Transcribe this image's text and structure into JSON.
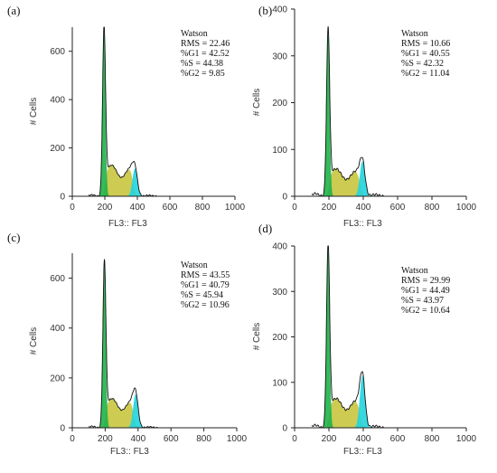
{
  "chart_data": [
    {
      "type": "area",
      "panel_label": "(a)",
      "xlabel": "FL3:: FL3",
      "ylabel": "# Cells",
      "xlim": [
        0,
        1000
      ],
      "ylim": [
        0,
        700
      ],
      "xticks": [
        0,
        200,
        400,
        600,
        800,
        1000
      ],
      "yticks": [
        0,
        200,
        400,
        600
      ],
      "model": "Watson",
      "stats": [
        "RMS = 22.46",
        "%G1 = 42.52",
        "%S = 44.38",
        "%G2 = 9.85"
      ],
      "g1_peak": {
        "x": 195,
        "y": 680
      },
      "s_phase_plateau": {
        "x_from": 215,
        "x_to": 360,
        "y": 110
      },
      "g2_peak": {
        "x": 385,
        "y": 115
      },
      "colors": {
        "g1": "#1fb24a",
        "s": "#c4c233",
        "g2": "#22d4de",
        "outline": "#111111"
      }
    },
    {
      "type": "area",
      "panel_label": "(b)",
      "xlabel": "FL3:: FL3",
      "ylabel": "# Cells",
      "xlim": [
        0,
        1000
      ],
      "ylim": [
        0,
        400
      ],
      "xticks": [
        0,
        200,
        400,
        600,
        800,
        1000
      ],
      "yticks": [
        0,
        100,
        200,
        300,
        400
      ],
      "model": "Watson",
      "stats": [
        "RMS = 10.66",
        "%G1 = 40.55",
        "%S = 42.32",
        "%G2 = 11.04"
      ],
      "g1_peak": {
        "x": 195,
        "y": 350
      },
      "s_phase_plateau": {
        "x_from": 215,
        "x_to": 375,
        "y": 50
      },
      "g2_peak": {
        "x": 395,
        "y": 75
      },
      "colors": {
        "g1": "#1fb24a",
        "s": "#c4c233",
        "g2": "#22d4de",
        "outline": "#111111"
      }
    },
    {
      "type": "area",
      "panel_label": "(c)",
      "xlabel": "FL3:: FL3",
      "ylabel": "# Cells",
      "xlim": [
        0,
        1000
      ],
      "ylim": [
        0,
        700
      ],
      "xticks": [
        0,
        200,
        400,
        600,
        800,
        1000
      ],
      "yticks": [
        0,
        200,
        400,
        600
      ],
      "model": "Watson",
      "stats": [
        "RMS = 43.55",
        "%G1 = 40.79",
        "%S = 45.94",
        "%G2 = 10.96"
      ],
      "g1_peak": {
        "x": 195,
        "y": 650
      },
      "s_phase_plateau": {
        "x_from": 215,
        "x_to": 360,
        "y": 100
      },
      "g2_peak": {
        "x": 385,
        "y": 135
      },
      "colors": {
        "g1": "#1fb24a",
        "s": "#c4c233",
        "g2": "#22d4de",
        "outline": "#111111"
      }
    },
    {
      "type": "area",
      "panel_label": "(d)",
      "xlabel": "FL3:: FL3",
      "ylabel": "# Cells",
      "xlim": [
        0,
        1000
      ],
      "ylim": [
        0,
        400
      ],
      "xticks": [
        0,
        200,
        400,
        600,
        800,
        1000
      ],
      "yticks": [
        0,
        100,
        200,
        300,
        400
      ],
      "model": "Watson",
      "stats": [
        "RMS = 29.99",
        "%G1 = 44.49",
        "%S = 43.97",
        "%G2 = 10.64"
      ],
      "g1_peak": {
        "x": 195,
        "y": 395
      },
      "s_phase_plateau": {
        "x_from": 215,
        "x_to": 375,
        "y": 55
      },
      "g2_peak": {
        "x": 395,
        "y": 115
      },
      "colors": {
        "g1": "#1fb24a",
        "s": "#c4c233",
        "g2": "#22d4de",
        "outline": "#111111"
      }
    }
  ]
}
